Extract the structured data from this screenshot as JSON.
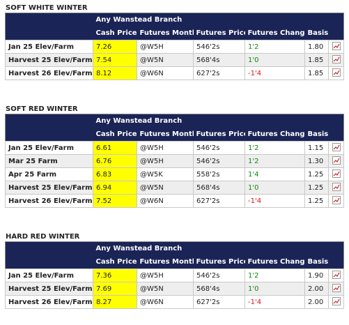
{
  "sections": [
    {
      "title": "SOFT WHITE WINTER",
      "branch": "Any Wanstead Branch",
      "columns": [
        "Cash Price",
        "Futures Month",
        "Futures Price",
        "Futures Change",
        "Basis"
      ],
      "rows": [
        [
          "Jan 25 Elev/Farm",
          "7.26",
          "@W5H",
          "546'2s",
          "1'2",
          "1.80"
        ],
        [
          "Harvest 25 Elev/Farm",
          "7.54",
          "@W5N",
          "568'4s",
          "1'0",
          "1.85"
        ],
        [
          "Harvest 26 Elev/Farm",
          "8.12",
          "@W6N",
          "627'2s",
          "-1'4",
          "1.85"
        ]
      ]
    },
    {
      "title": "SOFT RED WINTER",
      "branch": "Any Wanstead Branch",
      "columns": [
        "Cash Price",
        "Futures Month",
        "Futures Price",
        "Futures Change",
        "Basis"
      ],
      "rows": [
        [
          "Jan 25 Elev/Farm",
          "6.61",
          "@W5H",
          "546'2s",
          "1'2",
          "1.15"
        ],
        [
          "Mar 25 Farm",
          "6.76",
          "@W5H",
          "546'2s",
          "1'2",
          "1.30"
        ],
        [
          "Apr 25 Farm",
          "6.83",
          "@W5K",
          "558'2s",
          "1'4",
          "1.25"
        ],
        [
          "Harvest 25 Elev/Farm",
          "6.94",
          "@W5N",
          "568'4s",
          "1'0",
          "1.25"
        ],
        [
          "Harvest 26 Elev/Farm",
          "7.52",
          "@W6N",
          "627'2s",
          "-1'4",
          "1.25"
        ]
      ]
    },
    {
      "title": "HARD RED WINTER",
      "branch": "Any Wanstead Branch",
      "columns": [
        "Cash Price",
        "Futures Month",
        "Futures Price",
        "Futures Change",
        "Basis"
      ],
      "rows": [
        [
          "Jan 25 Elev/Farm",
          "7.36",
          "@W5H",
          "546'2s",
          "1'2",
          "1.90"
        ],
        [
          "Harvest 25 Elev/Farm",
          "7.69",
          "@W5N",
          "568'4s",
          "1'0",
          "2.00"
        ],
        [
          "Harvest 26 Elev/Farm",
          "8.27",
          "@W6N",
          "627'2s",
          "-1'4",
          "2.00"
        ]
      ]
    }
  ]
}
